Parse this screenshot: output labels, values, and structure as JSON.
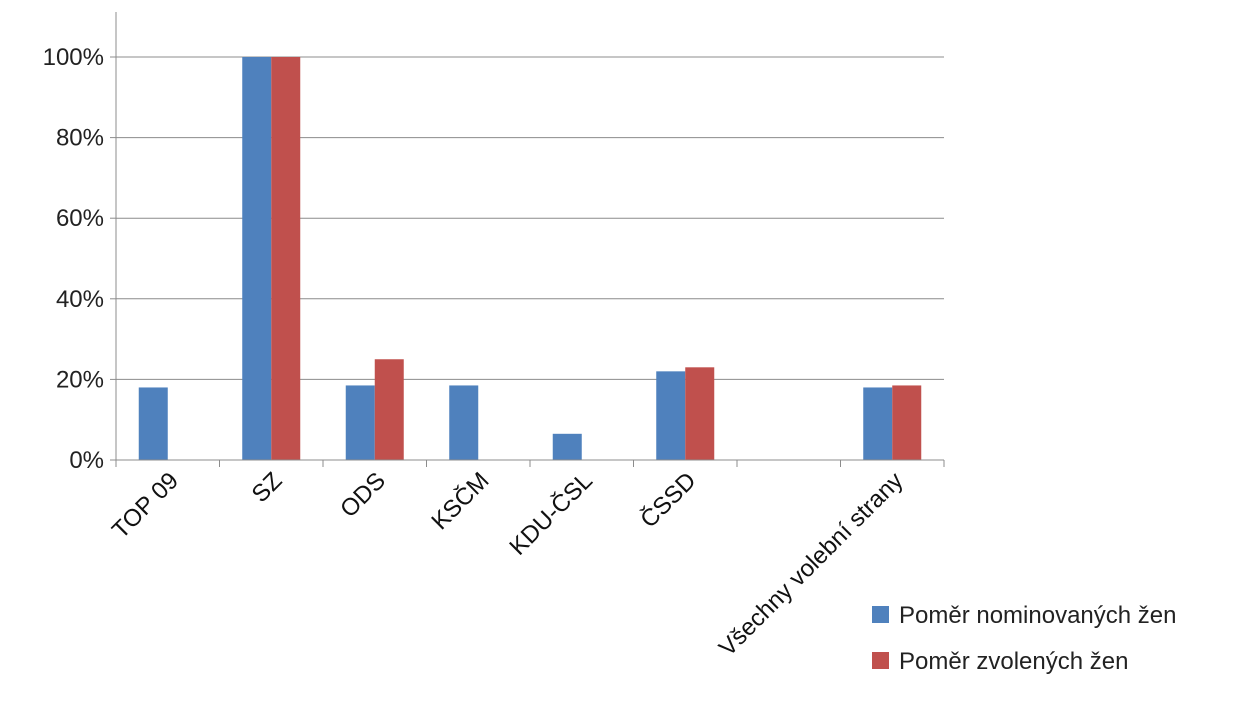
{
  "chart_data": {
    "type": "bar",
    "categories": [
      "TOP 09",
      "SZ",
      "ODS",
      "KSČM",
      "KDU-ČSL",
      "ČSSD",
      "",
      "Všechny volební strany"
    ],
    "series": [
      {
        "name": "Poměr nominovaných žen",
        "color": "#4F81BD",
        "values": [
          18,
          100,
          18.5,
          18.5,
          6.5,
          22,
          null,
          18
        ]
      },
      {
        "name": "Poměr zvolených žen",
        "color": "#C0504D",
        "values": [
          null,
          100,
          25,
          null,
          null,
          23,
          null,
          18.5
        ]
      }
    ],
    "yticks": [
      "0%",
      "20%",
      "40%",
      "60%",
      "80%",
      "100%"
    ],
    "ylim": [
      0,
      100
    ],
    "grid": true,
    "legend": "bottom-right"
  }
}
